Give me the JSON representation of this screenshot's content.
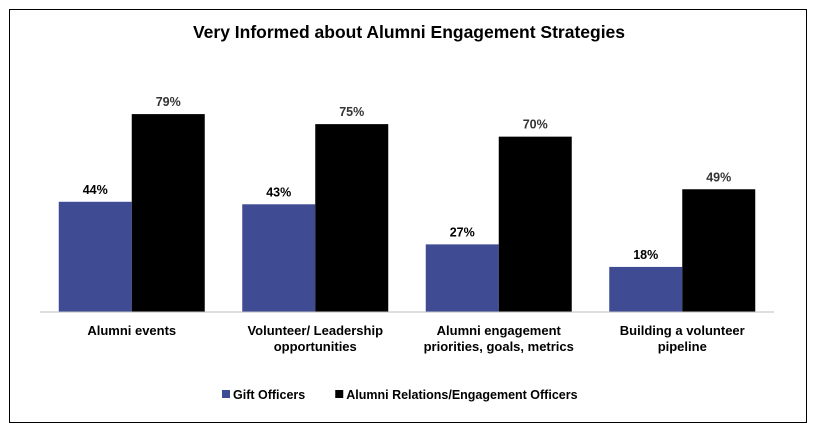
{
  "chart_data": {
    "type": "bar",
    "title": "Very Informed about Alumni Engagement Strategies",
    "categories": [
      [
        "Alumni events"
      ],
      [
        "Volunteer/ Leadership",
        "opportunities"
      ],
      [
        "Alumni engagement",
        "priorities, goals, metrics"
      ],
      [
        "Building a volunteer",
        "pipeline"
      ]
    ],
    "series": [
      {
        "name": "Gift Officers",
        "values": [
          44,
          43,
          27,
          18
        ],
        "labels": [
          "44%",
          "43%",
          "27%",
          "18%"
        ],
        "color": "#3F4C94"
      },
      {
        "name": "Alumni Relations/Engagement Officers",
        "values": [
          79,
          75,
          70,
          49
        ],
        "labels": [
          "79%",
          "75%",
          "70%",
          "49%"
        ],
        "color": "#000000"
      }
    ],
    "ylim": [
      0,
      100
    ],
    "grid": false,
    "legend": "bottom-center"
  }
}
